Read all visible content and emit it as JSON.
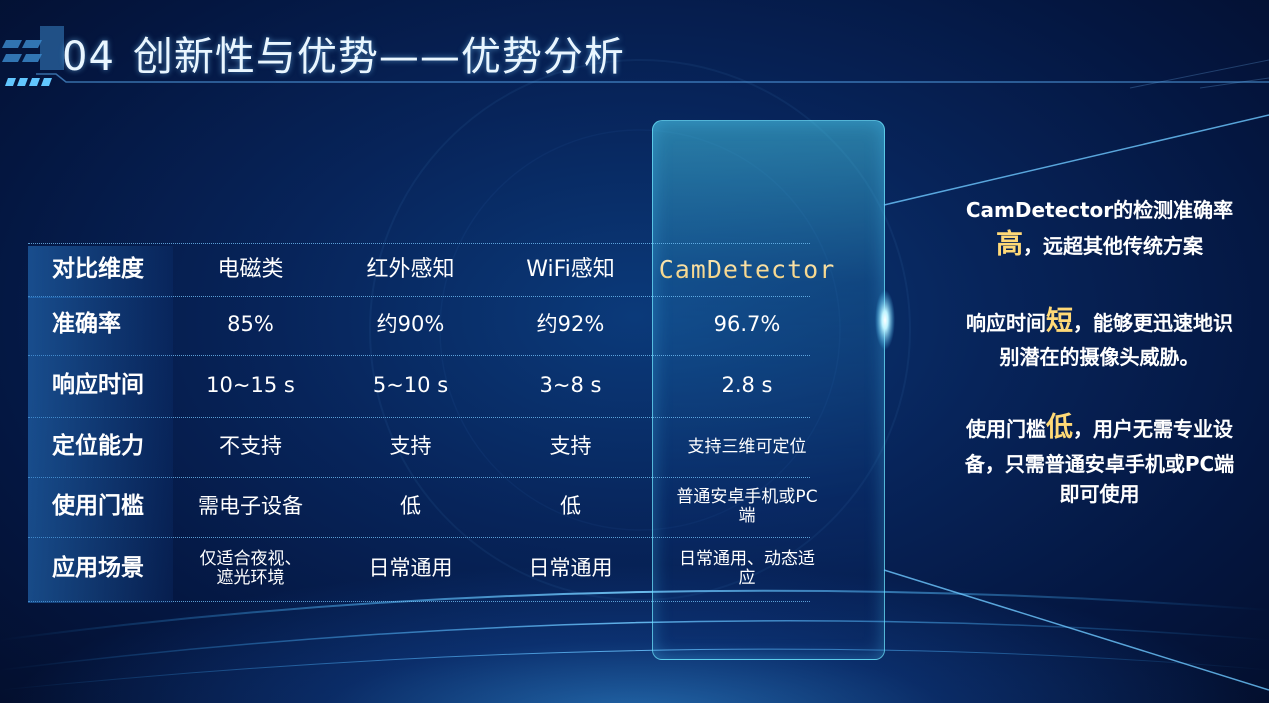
{
  "header": {
    "number": "04",
    "title": "创新性与优势——优势分析"
  },
  "table": {
    "header": [
      "对比维度",
      "电磁类",
      "红外感知",
      "WiFi感知",
      "CamDetector"
    ],
    "rows": [
      {
        "label": "准确率",
        "cells": [
          "85%",
          "约90%",
          "约92%",
          "96.7%"
        ]
      },
      {
        "label": "响应时间",
        "cells": [
          "10~15 s",
          "5~10 s",
          "3~8 s",
          "2.8 s"
        ]
      },
      {
        "label": "定位能力",
        "cells": [
          "不支持",
          "支持",
          "支持",
          "支持三维可定位"
        ]
      },
      {
        "label": "使用门槛",
        "cells": [
          "需电子设备",
          "低",
          "低",
          "普通安卓手机或PC端"
        ]
      },
      {
        "label": "应用场景",
        "cells": [
          "仅适合夜视、遮光环境",
          "日常通用",
          "日常通用",
          "日常通用、动态适应"
        ]
      }
    ]
  },
  "panel": {
    "p1": {
      "pre": "CamDetector的检测准确率",
      "emph": "高",
      "post": "，远超其他传统方案"
    },
    "p2": {
      "pre": "响应时间",
      "emph": "短",
      "post": "，能够更迅速地识别潜在的摄像头威胁。"
    },
    "p3": {
      "pre": "使用门槛",
      "emph": "低",
      "post": "，用户无需专业设备，只需普通安卓手机或PC端即可使用"
    }
  },
  "colors": {
    "accent": "#6ee6ff",
    "emphasis": "#ffd977",
    "background": "#07245a"
  }
}
